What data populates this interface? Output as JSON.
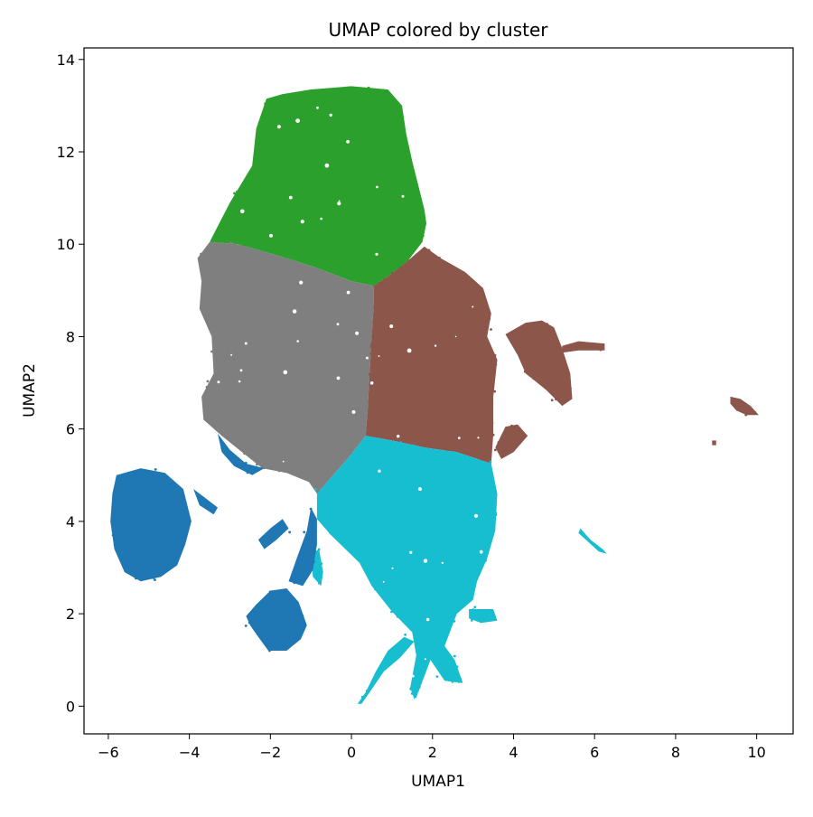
{
  "chart_data": {
    "type": "scatter",
    "title": "UMAP colored by cluster",
    "xlabel": "UMAP1",
    "ylabel": "UMAP2",
    "xlim": [
      -6.6,
      10.9
    ],
    "ylim": [
      -0.6,
      14.25
    ],
    "xticks": [
      -6,
      -4,
      -2,
      0,
      2,
      4,
      6,
      8,
      10
    ],
    "yticks": [
      0,
      2,
      4,
      6,
      8,
      10,
      12,
      14
    ],
    "xtick_labels": [
      "−6",
      "−4",
      "−2",
      "0",
      "2",
      "4",
      "6",
      "8",
      "10"
    ],
    "ytick_labels": [
      "0",
      "2",
      "4",
      "6",
      "8",
      "10",
      "12",
      "14"
    ],
    "grid": false,
    "legend": "none",
    "colors": {
      "green": "#2ca02c",
      "gray": "#7f7f7f",
      "brown": "#8c564b",
      "cyan": "#17becf",
      "blue": "#1f77b4"
    },
    "series": [
      {
        "color": "#2ca02c",
        "regions": [
          [
            [
              -3.5,
              10.05
            ],
            [
              -3.0,
              10.9
            ],
            [
              -2.45,
              11.7
            ],
            [
              -2.35,
              12.5
            ],
            [
              -2.1,
              13.15
            ],
            [
              -1.7,
              13.25
            ],
            [
              -1.0,
              13.35
            ],
            [
              0.0,
              13.42
            ],
            [
              0.9,
              13.35
            ],
            [
              1.25,
              13.0
            ],
            [
              1.35,
              12.4
            ],
            [
              1.5,
              11.8
            ],
            [
              1.7,
              11.1
            ],
            [
              1.8,
              10.75
            ],
            [
              1.85,
              10.45
            ],
            [
              1.75,
              10.05
            ],
            [
              1.4,
              9.65
            ],
            [
              0.9,
              9.3
            ],
            [
              0.55,
              9.1
            ],
            [
              0.0,
              9.2
            ],
            [
              -0.9,
              9.5
            ],
            [
              -1.8,
              9.75
            ],
            [
              -2.8,
              10.0
            ]
          ]
        ],
        "density": 1.0
      },
      {
        "color": "#7f7f7f",
        "regions": [
          [
            [
              -3.5,
              10.05
            ],
            [
              -3.8,
              9.7
            ],
            [
              -3.7,
              9.2
            ],
            [
              -3.75,
              8.6
            ],
            [
              -3.45,
              8.0
            ],
            [
              -3.4,
              7.2
            ],
            [
              -3.7,
              6.7
            ],
            [
              -3.65,
              6.2
            ],
            [
              -3.2,
              5.85
            ],
            [
              -2.7,
              5.5
            ],
            [
              -2.2,
              5.15
            ],
            [
              -1.6,
              5.05
            ],
            [
              -1.05,
              4.85
            ],
            [
              -0.85,
              4.6
            ],
            [
              -0.55,
              4.9
            ],
            [
              -0.05,
              5.4
            ],
            [
              0.35,
              5.85
            ],
            [
              0.4,
              6.4
            ],
            [
              0.45,
              7.2
            ],
            [
              0.5,
              8.0
            ],
            [
              0.55,
              8.7
            ],
            [
              0.55,
              9.1
            ],
            [
              0.0,
              9.2
            ],
            [
              -0.9,
              9.5
            ],
            [
              -1.8,
              9.75
            ],
            [
              -2.8,
              10.0
            ]
          ]
        ],
        "density": 1.0
      },
      {
        "color": "#8c564b",
        "regions": [
          [
            [
              0.55,
              9.1
            ],
            [
              0.9,
              9.3
            ],
            [
              1.4,
              9.65
            ],
            [
              1.8,
              9.95
            ],
            [
              2.2,
              9.7
            ],
            [
              2.8,
              9.4
            ],
            [
              3.25,
              9.05
            ],
            [
              3.45,
              8.5
            ],
            [
              3.35,
              8.0
            ],
            [
              3.6,
              7.5
            ],
            [
              3.5,
              6.7
            ],
            [
              3.5,
              5.9
            ],
            [
              3.45,
              5.25
            ],
            [
              2.6,
              5.5
            ],
            [
              1.8,
              5.6
            ],
            [
              1.0,
              5.75
            ],
            [
              0.35,
              5.85
            ],
            [
              0.4,
              6.4
            ],
            [
              0.45,
              7.2
            ],
            [
              0.5,
              8.0
            ],
            [
              0.55,
              8.7
            ]
          ],
          [
            [
              3.8,
              8.05
            ],
            [
              4.3,
              8.3
            ],
            [
              4.7,
              8.35
            ],
            [
              5.0,
              8.2
            ],
            [
              5.2,
              7.75
            ],
            [
              5.4,
              7.2
            ],
            [
              5.45,
              6.65
            ],
            [
              5.2,
              6.5
            ],
            [
              4.8,
              6.85
            ],
            [
              4.3,
              7.2
            ],
            [
              4.1,
              7.6
            ]
          ],
          [
            [
              5.2,
              7.8
            ],
            [
              5.6,
              7.9
            ],
            [
              6.25,
              7.85
            ],
            [
              6.25,
              7.7
            ],
            [
              5.6,
              7.7
            ],
            [
              5.2,
              7.65
            ]
          ],
          [
            [
              3.55,
              5.6
            ],
            [
              3.8,
              6.05
            ],
            [
              4.1,
              6.1
            ],
            [
              4.35,
              5.85
            ],
            [
              4.0,
              5.5
            ],
            [
              3.7,
              5.35
            ]
          ],
          [
            [
              9.35,
              6.7
            ],
            [
              9.6,
              6.65
            ],
            [
              9.85,
              6.5
            ],
            [
              10.05,
              6.3
            ],
            [
              9.75,
              6.3
            ],
            [
              9.5,
              6.4
            ],
            [
              9.35,
              6.55
            ]
          ],
          [
            [
              8.9,
              5.75
            ],
            [
              9.0,
              5.75
            ],
            [
              9.0,
              5.65
            ],
            [
              8.9,
              5.65
            ]
          ]
        ],
        "density": 1.0
      },
      {
        "color": "#17becf",
        "regions": [
          [
            [
              -0.85,
              4.6
            ],
            [
              -0.55,
              4.9
            ],
            [
              -0.05,
              5.4
            ],
            [
              0.35,
              5.85
            ],
            [
              1.0,
              5.75
            ],
            [
              1.8,
              5.6
            ],
            [
              2.6,
              5.5
            ],
            [
              3.45,
              5.25
            ],
            [
              3.6,
              4.6
            ],
            [
              3.55,
              3.8
            ],
            [
              3.35,
              3.2
            ],
            [
              3.1,
              2.7
            ],
            [
              3.0,
              2.3
            ],
            [
              2.6,
              2.0
            ],
            [
              2.3,
              1.3
            ],
            [
              2.55,
              1.0
            ],
            [
              2.75,
              0.5
            ],
            [
              2.3,
              0.55
            ],
            [
              1.95,
              1.0
            ],
            [
              1.65,
              0.3
            ],
            [
              1.55,
              0.15
            ],
            [
              1.45,
              0.4
            ],
            [
              1.6,
              1.1
            ],
            [
              1.5,
              1.6
            ],
            [
              1.0,
              2.05
            ],
            [
              0.5,
              2.6
            ],
            [
              0.2,
              3.1
            ],
            [
              -0.5,
              3.7
            ],
            [
              -0.85,
              4.05
            ]
          ],
          [
            [
              0.15,
              0.05
            ],
            [
              0.35,
              0.3
            ],
            [
              0.6,
              0.75
            ],
            [
              0.9,
              1.2
            ],
            [
              1.3,
              1.5
            ],
            [
              1.55,
              1.4
            ],
            [
              1.2,
              1.05
            ],
            [
              0.8,
              0.75
            ],
            [
              0.45,
              0.3
            ],
            [
              0.25,
              0.05
            ]
          ],
          [
            [
              2.9,
              2.1
            ],
            [
              3.5,
              2.1
            ],
            [
              3.6,
              1.85
            ],
            [
              3.2,
              1.8
            ],
            [
              2.9,
              1.9
            ]
          ],
          [
            [
              5.65,
              3.85
            ],
            [
              5.9,
              3.6
            ],
            [
              6.2,
              3.4
            ],
            [
              6.3,
              3.3
            ],
            [
              6.1,
              3.35
            ],
            [
              5.85,
              3.55
            ],
            [
              5.6,
              3.75
            ]
          ],
          [
            [
              -1.0,
              3.3
            ],
            [
              -0.8,
              3.4
            ],
            [
              -0.7,
              2.9
            ],
            [
              -0.75,
              2.6
            ],
            [
              -0.95,
              2.8
            ]
          ]
        ],
        "density": 1.0
      },
      {
        "color": "#1f77b4",
        "regions": [
          [
            [
              -5.8,
              5.0
            ],
            [
              -5.2,
              5.15
            ],
            [
              -4.6,
              5.05
            ],
            [
              -4.15,
              4.7
            ],
            [
              -3.95,
              4.0
            ],
            [
              -4.1,
              3.5
            ],
            [
              -4.3,
              3.05
            ],
            [
              -4.7,
              2.8
            ],
            [
              -5.2,
              2.7
            ],
            [
              -5.6,
              2.9
            ],
            [
              -5.85,
              3.4
            ],
            [
              -5.95,
              4.0
            ],
            [
              -5.9,
              4.6
            ]
          ],
          [
            [
              -3.3,
              5.9
            ],
            [
              -3.0,
              5.55
            ],
            [
              -2.6,
              5.25
            ],
            [
              -2.15,
              5.15
            ],
            [
              -2.45,
              5.0
            ],
            [
              -2.9,
              5.2
            ],
            [
              -3.2,
              5.5
            ]
          ],
          [
            [
              -2.6,
              1.95
            ],
            [
              -2.35,
              2.2
            ],
            [
              -2.0,
              2.5
            ],
            [
              -1.6,
              2.55
            ],
            [
              -1.3,
              2.25
            ],
            [
              -1.1,
              1.75
            ],
            [
              -1.25,
              1.45
            ],
            [
              -1.6,
              1.2
            ],
            [
              -2.05,
              1.2
            ],
            [
              -2.3,
              1.5
            ],
            [
              -2.5,
              1.75
            ]
          ],
          [
            [
              -1.55,
              2.7
            ],
            [
              -1.35,
              3.2
            ],
            [
              -1.1,
              3.8
            ],
            [
              -1.0,
              4.3
            ],
            [
              -0.85,
              4.05
            ],
            [
              -0.85,
              3.5
            ],
            [
              -0.95,
              2.95
            ],
            [
              -1.2,
              2.6
            ]
          ],
          [
            [
              -2.3,
              3.6
            ],
            [
              -2.0,
              3.85
            ],
            [
              -1.7,
              4.05
            ],
            [
              -1.55,
              3.85
            ],
            [
              -1.85,
              3.6
            ],
            [
              -2.15,
              3.4
            ]
          ],
          [
            [
              -3.9,
              4.7
            ],
            [
              -3.6,
              4.5
            ],
            [
              -3.3,
              4.3
            ],
            [
              -3.4,
              4.15
            ],
            [
              -3.75,
              4.35
            ]
          ]
        ],
        "density": 1.0
      }
    ]
  }
}
